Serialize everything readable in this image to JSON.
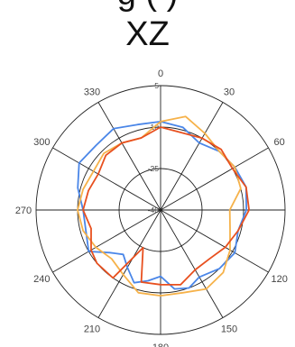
{
  "chart_data": {
    "type": "polar-line",
    "cut_off_text": "g          (   )",
    "title": "XZ",
    "angle_labels": [
      "0",
      "30",
      "60",
      "120",
      "150",
      "180",
      "210",
      "240",
      "270",
      "300",
      "330"
    ],
    "angle_label_degrees": [
      0,
      30,
      60,
      120,
      150,
      180,
      210,
      240,
      270,
      300,
      330
    ],
    "radial_axis": {
      "ticks": [
        -40,
        -25,
        -10,
        5
      ],
      "min": -40,
      "max": 5
    },
    "grid": true,
    "series": [
      {
        "color": "#4a86e8",
        "points": [
          [
            0,
            -8
          ],
          [
            15,
            -9
          ],
          [
            30,
            -12
          ],
          [
            45,
            -10
          ],
          [
            60,
            -9
          ],
          [
            75,
            -8
          ],
          [
            90,
            -9
          ],
          [
            105,
            -11
          ],
          [
            120,
            -9
          ],
          [
            135,
            -10
          ],
          [
            150,
            -12
          ],
          [
            160,
            -10
          ],
          [
            170,
            -11
          ],
          [
            180,
            -16
          ],
          [
            190,
            -14
          ],
          [
            200,
            -12
          ],
          [
            210,
            -16
          ],
          [
            220,
            -19
          ],
          [
            230,
            -16
          ],
          [
            240,
            -10
          ],
          [
            255,
            -12
          ],
          [
            270,
            -12
          ],
          [
            285,
            -9
          ],
          [
            300,
            -6
          ],
          [
            315,
            -7
          ],
          [
            330,
            -6
          ],
          [
            345,
            -8
          ],
          [
            360,
            -8
          ]
        ]
      },
      {
        "color": "#f6b24a",
        "points": [
          [
            0,
            -8
          ],
          [
            15,
            -5
          ],
          [
            30,
            -8
          ],
          [
            45,
            -10
          ],
          [
            60,
            -9
          ],
          [
            75,
            -10
          ],
          [
            90,
            -15
          ],
          [
            105,
            -14
          ],
          [
            120,
            -11
          ],
          [
            135,
            -8
          ],
          [
            150,
            -7
          ],
          [
            165,
            -9
          ],
          [
            180,
            -9
          ],
          [
            195,
            -9
          ],
          [
            210,
            -13
          ],
          [
            225,
            -15
          ],
          [
            240,
            -13
          ],
          [
            255,
            -11
          ],
          [
            270,
            -10
          ],
          [
            285,
            -11
          ],
          [
            300,
            -12
          ],
          [
            315,
            -11
          ],
          [
            330,
            -12
          ],
          [
            345,
            -13
          ],
          [
            360,
            -8
          ]
        ]
      },
      {
        "color": "#e8501f",
        "points": [
          [
            0,
            -10
          ],
          [
            15,
            -11
          ],
          [
            30,
            -10
          ],
          [
            45,
            -9
          ],
          [
            60,
            -10
          ],
          [
            75,
            -8
          ],
          [
            90,
            -8
          ],
          [
            105,
            -11
          ],
          [
            120,
            -13
          ],
          [
            135,
            -15
          ],
          [
            150,
            -15
          ],
          [
            165,
            -12
          ],
          [
            180,
            -13
          ],
          [
            195,
            -13
          ],
          [
            205,
            -25
          ],
          [
            215,
            -10
          ],
          [
            230,
            -10
          ],
          [
            240,
            -11
          ],
          [
            255,
            -14
          ],
          [
            270,
            -12
          ],
          [
            285,
            -13
          ],
          [
            300,
            -14
          ],
          [
            315,
            -12
          ],
          [
            330,
            -12
          ],
          [
            345,
            -13
          ],
          [
            360,
            -10
          ]
        ]
      }
    ]
  }
}
